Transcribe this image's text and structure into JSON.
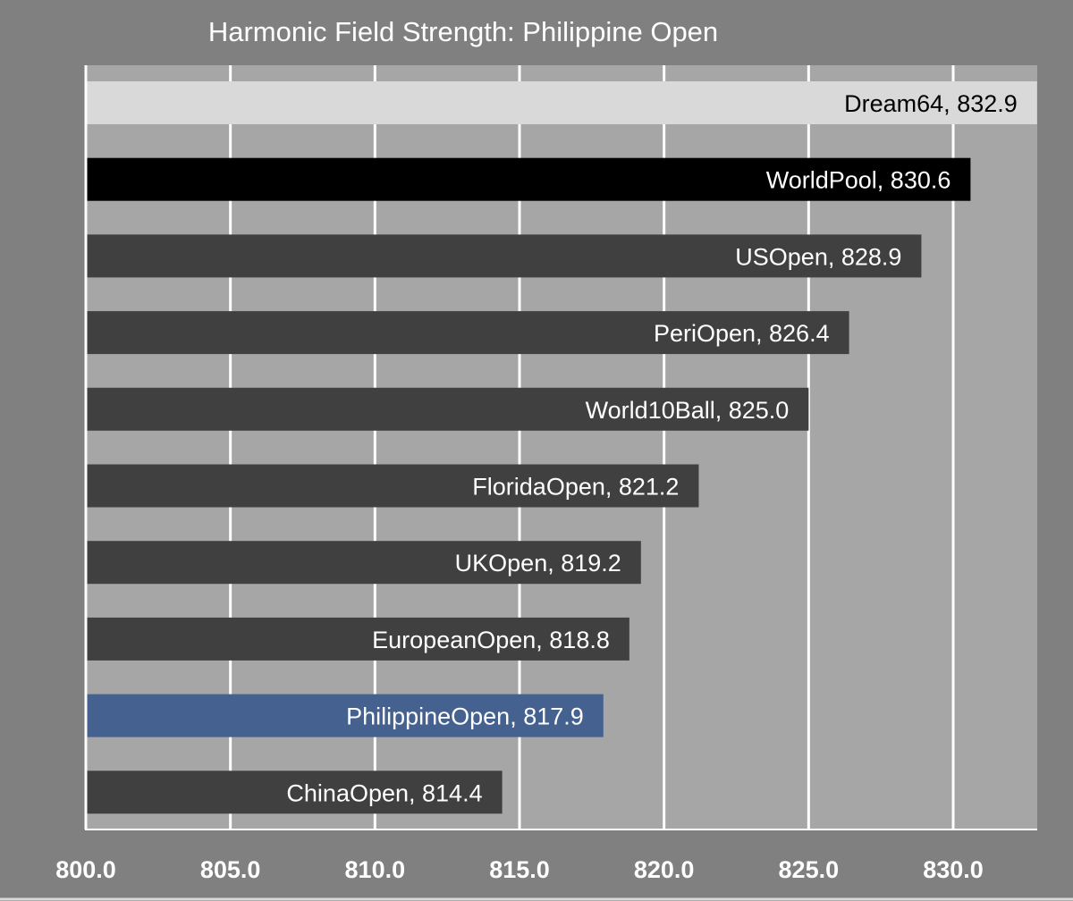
{
  "chart_data": {
    "type": "bar",
    "orientation": "horizontal",
    "title": "Harmonic Field Strength: Philippine Open",
    "xlabel": "",
    "ylabel": "",
    "xlim": [
      800,
      833
    ],
    "x_ticks": [
      "800.0",
      "805.0",
      "810.0",
      "815.0",
      "820.0",
      "825.0",
      "830.0"
    ],
    "grid": "vertical",
    "categories": [
      "Dream64",
      "WorldPool",
      "USOpen",
      "PeriOpen",
      "World10Ball",
      "FloridaOpen",
      "UKOpen",
      "EuropeanOpen",
      "PhilippineOpen",
      "ChinaOpen"
    ],
    "values": [
      832.9,
      830.6,
      828.9,
      826.4,
      825.0,
      821.2,
      819.2,
      818.8,
      817.9,
      814.4
    ],
    "data_labels": [
      "Dream64, 832.9",
      "WorldPool, 830.6",
      "USOpen, 828.9",
      "PeriOpen, 826.4",
      "World10Ball, 825.0",
      "FloridaOpen, 821.2",
      "UKOpen, 819.2",
      "EuropeanOpen, 818.8",
      "PhilippineOpen, 817.9",
      "ChinaOpen, 814.4"
    ],
    "bar_colors": [
      "#d9d9d9",
      "#000000",
      "#404040",
      "#404040",
      "#404040",
      "#404040",
      "#404040",
      "#404040",
      "#45618f",
      "#404040"
    ],
    "label_colors": [
      "#000000",
      "#ffffff",
      "#ffffff",
      "#ffffff",
      "#ffffff",
      "#ffffff",
      "#ffffff",
      "#ffffff",
      "#ffffff",
      "#ffffff"
    ],
    "colors": {
      "background": "#808080",
      "plot_area": "#a6a6a6",
      "gridline": "#ffffff"
    }
  }
}
